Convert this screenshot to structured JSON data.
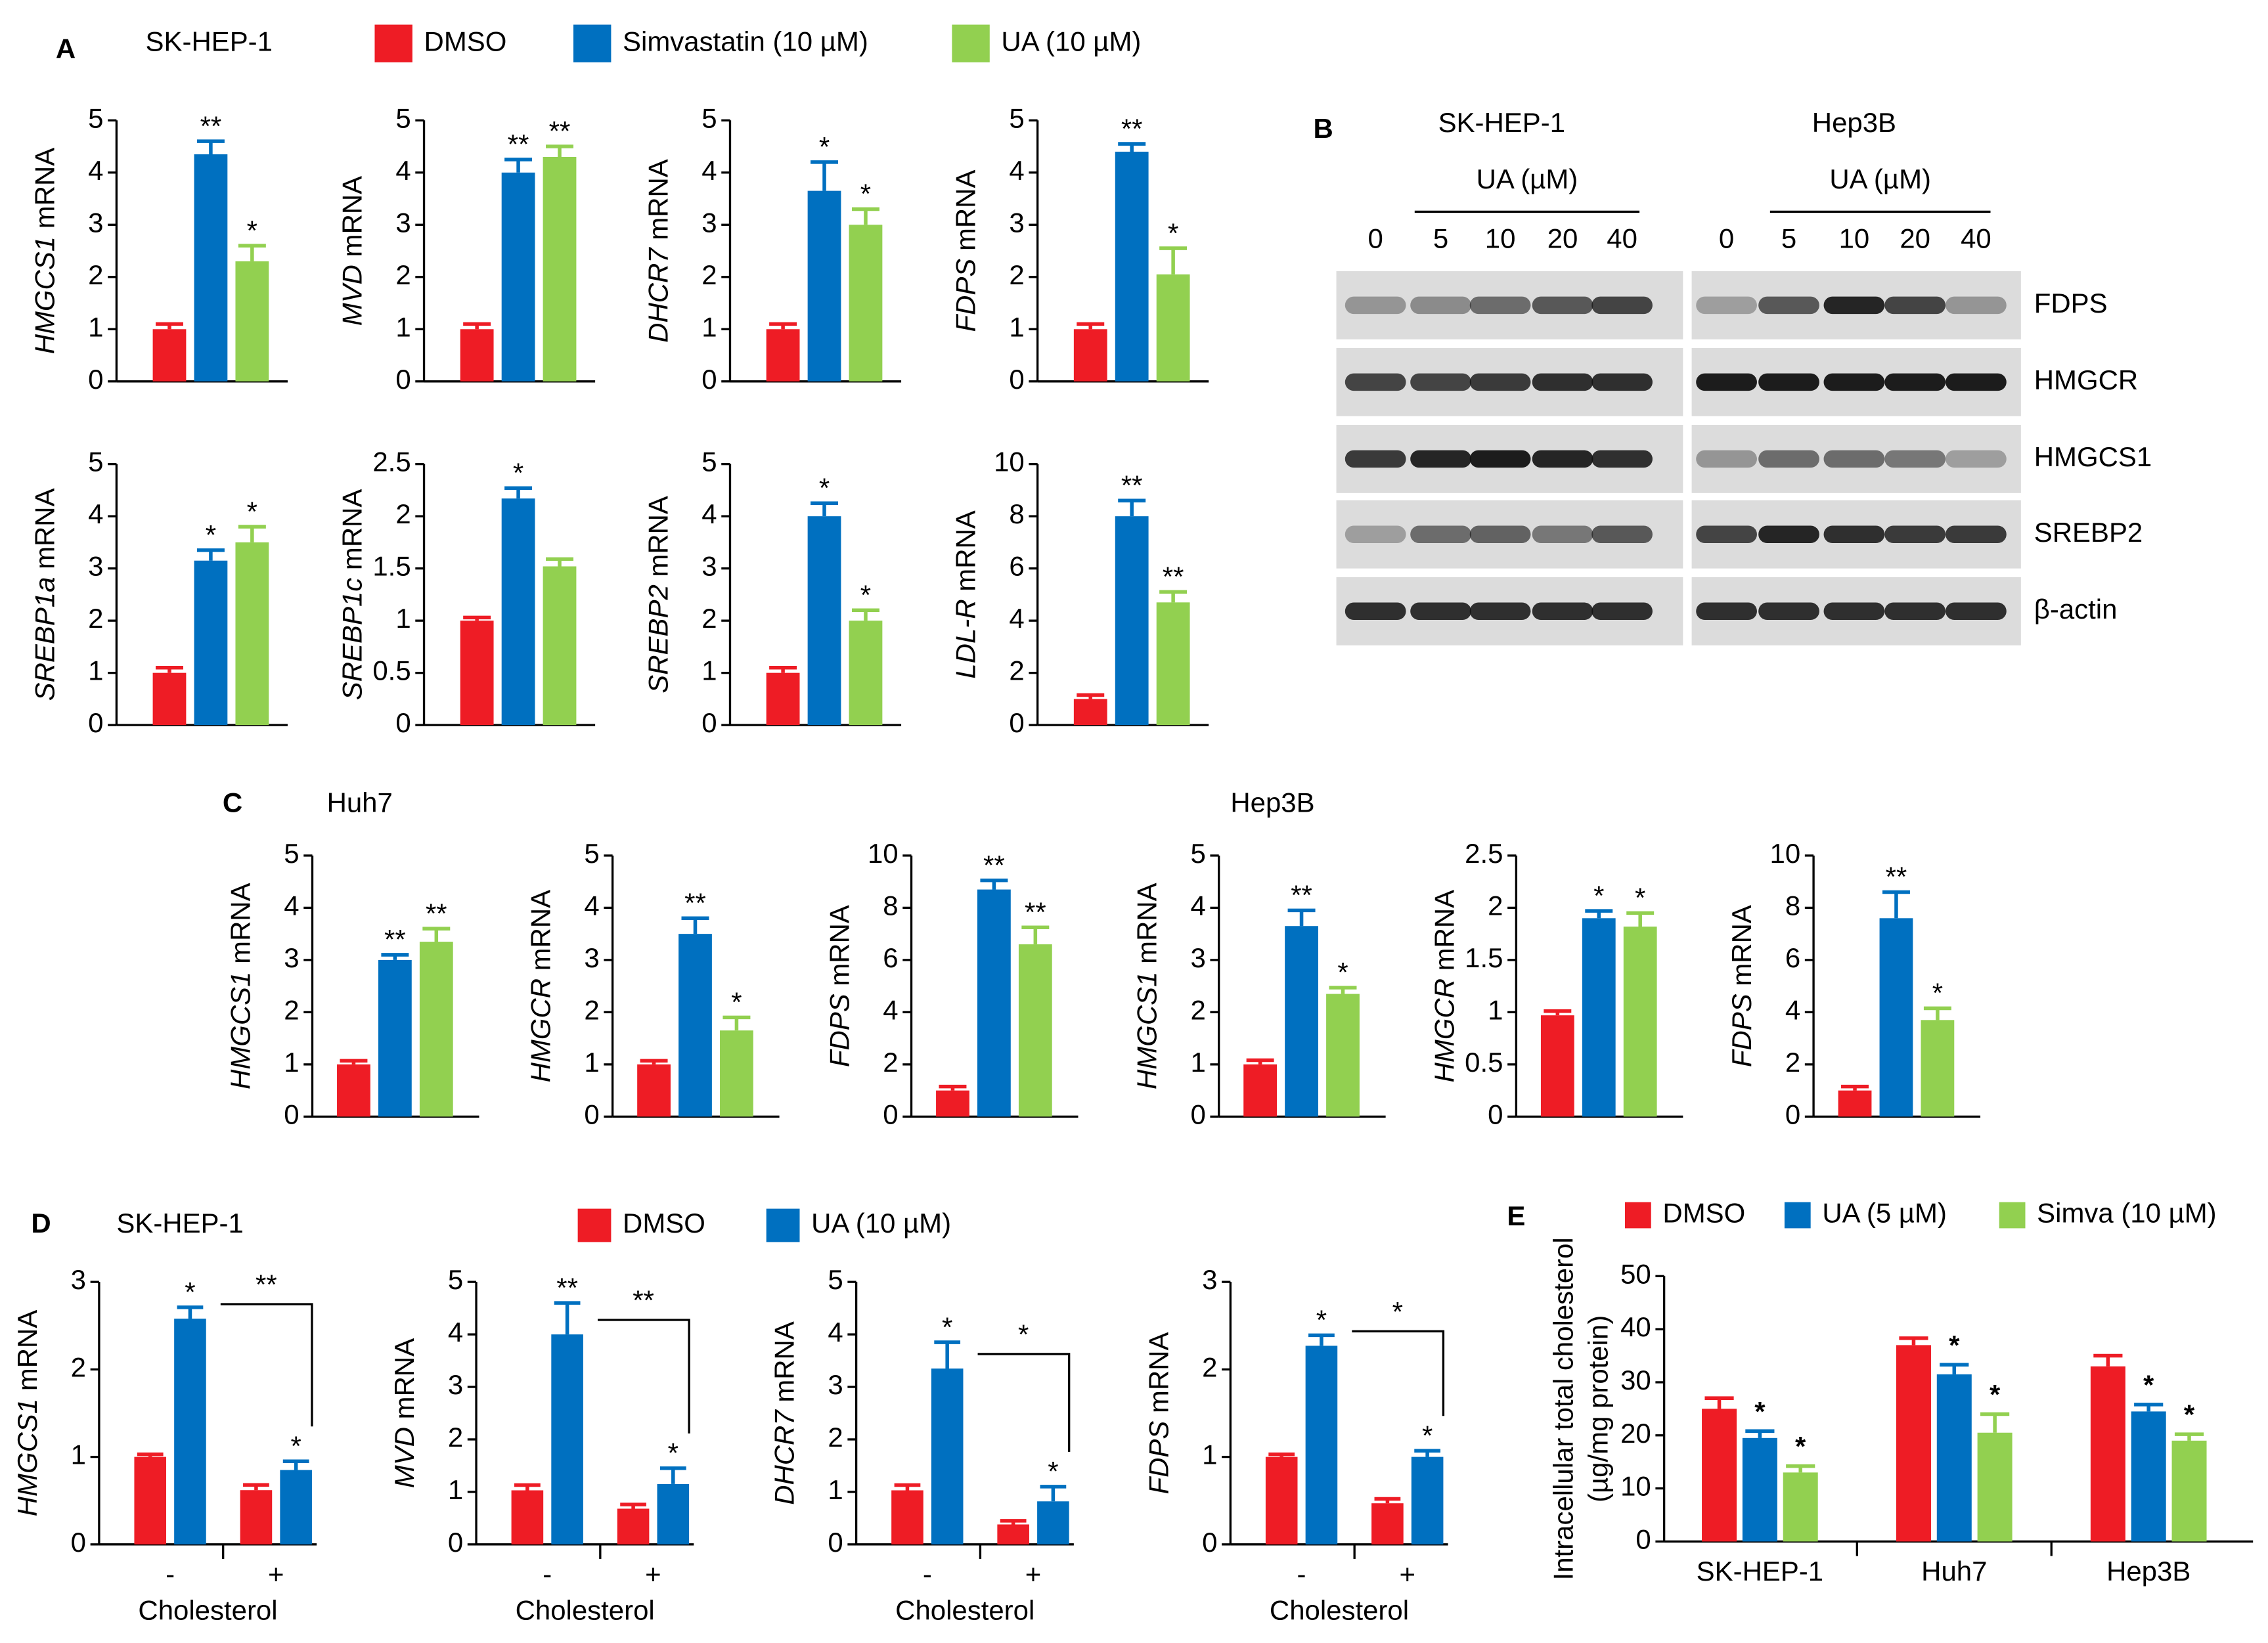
{
  "panels": [
    {
      "label": "A",
      "cell_line": "SK-HEP-1",
      "legend": [
        {
          "name": "DMSO",
          "color": "#ee1c25"
        },
        {
          "name": "Simvastatin (10 µM)",
          "color": "#0070c0"
        },
        {
          "name": "UA (10 µM)",
          "color": "#92d050"
        }
      ]
    },
    {
      "label": "B"
    },
    {
      "label": "C",
      "cell_lines": [
        "Huh7",
        "Hep3B"
      ]
    },
    {
      "label": "D",
      "cell_line": "SK-HEP-1",
      "legend": [
        {
          "name": "DMSO",
          "color": "#ee1c25"
        },
        {
          "name": "UA (10 µM)",
          "color": "#0070c0"
        }
      ]
    },
    {
      "label": "E",
      "legend": [
        {
          "name": "DMSO",
          "color": "#ee1c25"
        },
        {
          "name": "UA (5 µM)",
          "color": "#0070c0"
        },
        {
          "name": "Simva (10 µM)",
          "color": "#92d050"
        }
      ]
    }
  ],
  "blot": {
    "cell_lines": [
      "SK-HEP-1",
      "Hep3B"
    ],
    "treatment": "UA (µM)",
    "doses": [
      "0",
      "5",
      "10",
      "20",
      "40"
    ],
    "proteins": [
      "FDPS",
      "HMGCR",
      "HMGCS1",
      "SREBP2",
      "β-actin"
    ]
  },
  "chart_data": [
    {
      "type": "bar",
      "ylabel_gene": "HMGCS1",
      "ylabel_rest": " mRNA",
      "categories": [
        null
      ],
      "ylim": [
        0,
        5
      ],
      "yticks": [
        0,
        1,
        2,
        3,
        4,
        5
      ],
      "series": [
        {
          "color": "#ee1c25",
          "values": [
            1
          ],
          "errors": [
            0.1
          ],
          "stars": [
            null
          ]
        },
        {
          "color": "#0070c0",
          "values": [
            4.35
          ],
          "errors": [
            0.25
          ],
          "stars": [
            "**"
          ]
        },
        {
          "color": "#92d050",
          "values": [
            2.3
          ],
          "errors": [
            0.3
          ],
          "stars": [
            "*"
          ]
        }
      ]
    },
    {
      "type": "bar",
      "ylabel_gene": "MVD",
      "ylabel_rest": " mRNA",
      "categories": [
        null
      ],
      "ylim": [
        0,
        5
      ],
      "yticks": [
        0,
        1,
        2,
        3,
        4,
        5
      ],
      "series": [
        {
          "color": "#ee1c25",
          "values": [
            1
          ],
          "errors": [
            0.1
          ],
          "stars": [
            null
          ]
        },
        {
          "color": "#0070c0",
          "values": [
            4.0
          ],
          "errors": [
            0.25
          ],
          "stars": [
            "**"
          ]
        },
        {
          "color": "#92d050",
          "values": [
            4.3
          ],
          "errors": [
            0.2
          ],
          "stars": [
            "**"
          ]
        }
      ]
    },
    {
      "type": "bar",
      "ylabel_gene": "DHCR7",
      "ylabel_rest": " mRNA",
      "categories": [
        null
      ],
      "ylim": [
        0,
        5
      ],
      "yticks": [
        0,
        1,
        2,
        3,
        4,
        5
      ],
      "series": [
        {
          "color": "#ee1c25",
          "values": [
            1
          ],
          "errors": [
            0.1
          ],
          "stars": [
            null
          ]
        },
        {
          "color": "#0070c0",
          "values": [
            3.65
          ],
          "errors": [
            0.55
          ],
          "stars": [
            "*"
          ]
        },
        {
          "color": "#92d050",
          "values": [
            3.0
          ],
          "errors": [
            0.3
          ],
          "stars": [
            "*"
          ]
        }
      ]
    },
    {
      "type": "bar",
      "ylabel_gene": "FDPS",
      "ylabel_rest": " mRNA",
      "categories": [
        null
      ],
      "ylim": [
        0,
        5
      ],
      "yticks": [
        0,
        1,
        2,
        3,
        4,
        5
      ],
      "series": [
        {
          "color": "#ee1c25",
          "values": [
            1
          ],
          "errors": [
            0.1
          ],
          "stars": [
            null
          ]
        },
        {
          "color": "#0070c0",
          "values": [
            4.4
          ],
          "errors": [
            0.15
          ],
          "stars": [
            "**"
          ]
        },
        {
          "color": "#92d050",
          "values": [
            2.05
          ],
          "errors": [
            0.5
          ],
          "stars": [
            "*"
          ]
        }
      ]
    },
    {
      "type": "bar",
      "ylabel_gene": "SREBP1a",
      "ylabel_rest": " mRNA",
      "categories": [
        null
      ],
      "ylim": [
        0,
        5
      ],
      "yticks": [
        0,
        1,
        2,
        3,
        4,
        5
      ],
      "series": [
        {
          "color": "#ee1c25",
          "values": [
            1
          ],
          "errors": [
            0.1
          ],
          "stars": [
            null
          ]
        },
        {
          "color": "#0070c0",
          "values": [
            3.15
          ],
          "errors": [
            0.2
          ],
          "stars": [
            "*"
          ]
        },
        {
          "color": "#92d050",
          "values": [
            3.5
          ],
          "errors": [
            0.3
          ],
          "stars": [
            "*"
          ]
        }
      ]
    },
    {
      "type": "bar",
      "ylabel_gene": "SREBP1c",
      "ylabel_rest": " mRNA",
      "categories": [
        null
      ],
      "ylim": [
        0,
        2.5
      ],
      "yticks": [
        0,
        0.5,
        1,
        1.5,
        2,
        2.5
      ],
      "series": [
        {
          "color": "#ee1c25",
          "values": [
            1
          ],
          "errors": [
            0.03
          ],
          "stars": [
            null
          ]
        },
        {
          "color": "#0070c0",
          "values": [
            2.17
          ],
          "errors": [
            0.1
          ],
          "stars": [
            "*"
          ]
        },
        {
          "color": "#92d050",
          "values": [
            1.52
          ],
          "errors": [
            0.07
          ],
          "stars": [
            null
          ]
        }
      ]
    },
    {
      "type": "bar",
      "ylabel_gene": "SREBP2",
      "ylabel_rest": " mRNA",
      "categories": [
        null
      ],
      "ylim": [
        0,
        5
      ],
      "yticks": [
        0,
        1,
        2,
        3,
        4,
        5
      ],
      "series": [
        {
          "color": "#ee1c25",
          "values": [
            1
          ],
          "errors": [
            0.1
          ],
          "stars": [
            null
          ]
        },
        {
          "color": "#0070c0",
          "values": [
            4.0
          ],
          "errors": [
            0.25
          ],
          "stars": [
            "*"
          ]
        },
        {
          "color": "#92d050",
          "values": [
            2.0
          ],
          "errors": [
            0.2
          ],
          "stars": [
            "*"
          ]
        }
      ]
    },
    {
      "type": "bar",
      "ylabel_gene": "LDL-R",
      "ylabel_rest": " mRNA",
      "categories": [
        null
      ],
      "ylim": [
        0,
        10
      ],
      "yticks": [
        0,
        2,
        4,
        6,
        8,
        10
      ],
      "series": [
        {
          "color": "#ee1c25",
          "values": [
            1
          ],
          "errors": [
            0.15
          ],
          "stars": [
            null
          ]
        },
        {
          "color": "#0070c0",
          "values": [
            8.0
          ],
          "errors": [
            0.6
          ],
          "stars": [
            "**"
          ]
        },
        {
          "color": "#92d050",
          "values": [
            4.7
          ],
          "errors": [
            0.4
          ],
          "stars": [
            "**"
          ]
        }
      ]
    },
    {
      "type": "bar",
      "ylabel_gene": "HMGCS1",
      "ylabel_rest": " mRNA",
      "categories": [
        null
      ],
      "ylim": [
        0,
        5
      ],
      "yticks": [
        0,
        1,
        2,
        3,
        4,
        5
      ],
      "series": [
        {
          "color": "#ee1c25",
          "values": [
            1
          ],
          "errors": [
            0.07
          ],
          "stars": [
            null
          ]
        },
        {
          "color": "#0070c0",
          "values": [
            3.0
          ],
          "errors": [
            0.1
          ],
          "stars": [
            "**"
          ]
        },
        {
          "color": "#92d050",
          "values": [
            3.35
          ],
          "errors": [
            0.25
          ],
          "stars": [
            "**"
          ]
        }
      ]
    },
    {
      "type": "bar",
      "ylabel_gene": "HMGCR",
      "ylabel_rest": " mRNA",
      "categories": [
        null
      ],
      "ylim": [
        0,
        5
      ],
      "yticks": [
        0,
        1,
        2,
        3,
        4,
        5
      ],
      "series": [
        {
          "color": "#ee1c25",
          "values": [
            1
          ],
          "errors": [
            0.07
          ],
          "stars": [
            null
          ]
        },
        {
          "color": "#0070c0",
          "values": [
            3.5
          ],
          "errors": [
            0.3
          ],
          "stars": [
            "**"
          ]
        },
        {
          "color": "#92d050",
          "values": [
            1.65
          ],
          "errors": [
            0.25
          ],
          "stars": [
            "*"
          ]
        }
      ]
    },
    {
      "type": "bar",
      "ylabel_gene": "FDPS",
      "ylabel_rest": " mRNA",
      "categories": [
        null
      ],
      "ylim": [
        0,
        10
      ],
      "yticks": [
        0,
        2,
        4,
        6,
        8,
        10
      ],
      "series": [
        {
          "color": "#ee1c25",
          "values": [
            1
          ],
          "errors": [
            0.15
          ],
          "stars": [
            null
          ]
        },
        {
          "color": "#0070c0",
          "values": [
            8.7
          ],
          "errors": [
            0.35
          ],
          "stars": [
            "**"
          ]
        },
        {
          "color": "#92d050",
          "values": [
            6.6
          ],
          "errors": [
            0.65
          ],
          "stars": [
            "**"
          ]
        }
      ]
    },
    {
      "type": "bar",
      "ylabel_gene": "HMGCS1",
      "ylabel_rest": " mRNA",
      "categories": [
        null
      ],
      "ylim": [
        0,
        5
      ],
      "yticks": [
        0,
        1,
        2,
        3,
        4,
        5
      ],
      "series": [
        {
          "color": "#ee1c25",
          "values": [
            1
          ],
          "errors": [
            0.08
          ],
          "stars": [
            null
          ]
        },
        {
          "color": "#0070c0",
          "values": [
            3.65
          ],
          "errors": [
            0.3
          ],
          "stars": [
            "**"
          ]
        },
        {
          "color": "#92d050",
          "values": [
            2.35
          ],
          "errors": [
            0.12
          ],
          "stars": [
            "*"
          ]
        }
      ]
    },
    {
      "type": "bar",
      "ylabel_gene": "HMGCR",
      "ylabel_rest": " mRNA",
      "categories": [
        null
      ],
      "ylim": [
        0,
        2.5
      ],
      "yticks": [
        0,
        0.5,
        1,
        1.5,
        2,
        2.5
      ],
      "series": [
        {
          "color": "#ee1c25",
          "values": [
            0.97
          ],
          "errors": [
            0.04
          ],
          "stars": [
            null
          ]
        },
        {
          "color": "#0070c0",
          "values": [
            1.9
          ],
          "errors": [
            0.07
          ],
          "stars": [
            "*"
          ]
        },
        {
          "color": "#92d050",
          "values": [
            1.82
          ],
          "errors": [
            0.13
          ],
          "stars": [
            "*"
          ]
        }
      ]
    },
    {
      "type": "bar",
      "ylabel_gene": "FDPS",
      "ylabel_rest": " mRNA",
      "categories": [
        null
      ],
      "ylim": [
        0,
        10
      ],
      "yticks": [
        0,
        2,
        4,
        6,
        8,
        10
      ],
      "series": [
        {
          "color": "#ee1c25",
          "values": [
            1
          ],
          "errors": [
            0.15
          ],
          "stars": [
            null
          ]
        },
        {
          "color": "#0070c0",
          "values": [
            7.6
          ],
          "errors": [
            1.0
          ],
          "stars": [
            "**"
          ]
        },
        {
          "color": "#92d050",
          "values": [
            3.7
          ],
          "errors": [
            0.45
          ],
          "stars": [
            "*"
          ]
        }
      ]
    },
    {
      "type": "bar",
      "ylabel_gene": "HMGCS1",
      "ylabel_rest": " mRNA",
      "categories": [
        "-",
        "+"
      ],
      "xlabel": "Cholesterol",
      "bracket": "**",
      "ylim": [
        0,
        3
      ],
      "yticks": [
        0,
        1,
        2,
        3
      ],
      "series": [
        {
          "color": "#ee1c25",
          "values": [
            1,
            0.62
          ],
          "errors": [
            0.03,
            0.06
          ],
          "stars": [
            null,
            null
          ]
        },
        {
          "color": "#0070c0",
          "values": [
            2.58,
            0.85
          ],
          "errors": [
            0.13,
            0.1
          ],
          "stars": [
            "*",
            "*"
          ]
        }
      ]
    },
    {
      "type": "bar",
      "ylabel_gene": "MVD",
      "ylabel_rest": " mRNA",
      "categories": [
        "-",
        "+"
      ],
      "xlabel": "Cholesterol",
      "bracket": "**",
      "ylim": [
        0,
        5
      ],
      "yticks": [
        0,
        1,
        2,
        3,
        4,
        5
      ],
      "series": [
        {
          "color": "#ee1c25",
          "values": [
            1.03,
            0.68
          ],
          "errors": [
            0.1,
            0.08
          ],
          "stars": [
            null,
            null
          ]
        },
        {
          "color": "#0070c0",
          "values": [
            4.0,
            1.15
          ],
          "errors": [
            0.6,
            0.3
          ],
          "stars": [
            "**",
            "*"
          ]
        }
      ]
    },
    {
      "type": "bar",
      "ylabel_gene": "DHCR7",
      "ylabel_rest": " mRNA",
      "categories": [
        "-",
        "+"
      ],
      "xlabel": "Cholesterol",
      "bracket": "*",
      "ylim": [
        0,
        5
      ],
      "yticks": [
        0,
        1,
        2,
        3,
        4,
        5
      ],
      "series": [
        {
          "color": "#ee1c25",
          "values": [
            1.03,
            0.38
          ],
          "errors": [
            0.1,
            0.07
          ],
          "stars": [
            null,
            null
          ]
        },
        {
          "color": "#0070c0",
          "values": [
            3.35,
            0.82
          ],
          "errors": [
            0.5,
            0.28
          ],
          "stars": [
            "*",
            "*"
          ]
        }
      ]
    },
    {
      "type": "bar",
      "ylabel_gene": "FDPS",
      "ylabel_rest": " mRNA",
      "categories": [
        "-",
        "+"
      ],
      "xlabel": "Cholesterol",
      "bracket": "*",
      "ylim": [
        0,
        3
      ],
      "yticks": [
        0,
        1,
        2,
        3
      ],
      "series": [
        {
          "color": "#ee1c25",
          "values": [
            1,
            0.47
          ],
          "errors": [
            0.03,
            0.05
          ],
          "stars": [
            null,
            null
          ]
        },
        {
          "color": "#0070c0",
          "values": [
            2.27,
            1.0
          ],
          "errors": [
            0.12,
            0.07
          ],
          "stars": [
            "*",
            "*"
          ]
        }
      ]
    },
    {
      "type": "bar",
      "ylabel_lines": [
        "Intracellular total cholesterol",
        "(µg/mg protein)"
      ],
      "categories": [
        "SK-HEP-1",
        "Huh7",
        "Hep3B"
      ],
      "ylim": [
        0,
        50
      ],
      "yticks": [
        0,
        10,
        20,
        30,
        40,
        50
      ],
      "series": [
        {
          "color": "#ee1c25",
          "values": [
            25,
            37,
            33
          ],
          "errors": [
            2,
            1.3,
            2
          ],
          "stars": [
            null,
            null,
            null
          ]
        },
        {
          "color": "#0070c0",
          "values": [
            19.5,
            31.5,
            24.5
          ],
          "errors": [
            1.3,
            1.8,
            1.3
          ],
          "stars": [
            "*",
            "*",
            "*"
          ]
        },
        {
          "color": "#92d050",
          "values": [
            13,
            20.5,
            19
          ],
          "errors": [
            1.2,
            3.5,
            1.2
          ],
          "stars": [
            "*",
            "*",
            "*"
          ]
        }
      ]
    }
  ]
}
